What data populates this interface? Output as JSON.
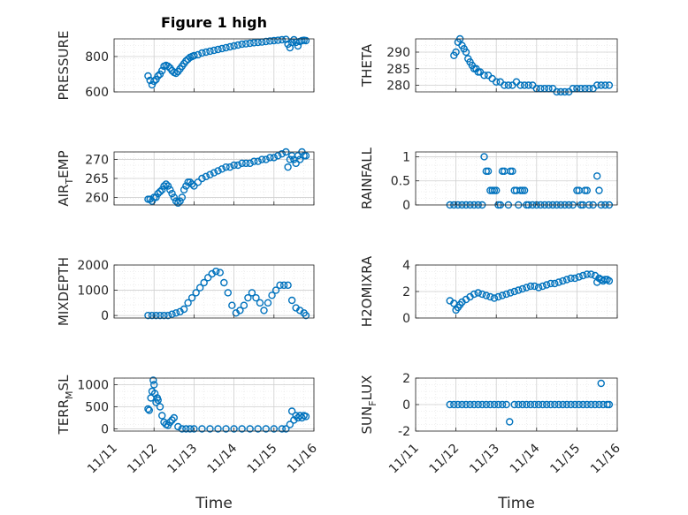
{
  "colors": {
    "marker": "#0072BD",
    "axis": "#262626",
    "grid": "#cfcfcf",
    "minor_grid": "#e0e0e0"
  },
  "chart_data": [
    {
      "type": "scatter",
      "title": "Figure 1 high",
      "ylabel": "PRESSURE",
      "x_ticks": [
        "11/11",
        "11/12",
        "11/13",
        "11/14",
        "11/15",
        "11/16"
      ],
      "ylim": [
        600,
        900
      ],
      "y_ticks": [
        "600",
        "800"
      ],
      "y_tick_values": [
        600,
        800
      ],
      "grid": "on",
      "marker": "open-circle",
      "x": [
        11.85,
        11.9,
        11.95,
        12.0,
        12.05,
        12.1,
        12.15,
        12.2,
        12.25,
        12.3,
        12.35,
        12.4,
        12.45,
        12.5,
        12.55,
        12.6,
        12.65,
        12.7,
        12.75,
        12.8,
        12.85,
        12.9,
        12.95,
        13.0,
        13.1,
        13.2,
        13.3,
        13.4,
        13.5,
        13.6,
        13.7,
        13.8,
        13.9,
        14.0,
        14.1,
        14.2,
        14.3,
        14.4,
        14.5,
        14.6,
        14.7,
        14.8,
        14.9,
        15.0,
        15.1,
        15.2,
        15.3,
        15.35,
        15.4,
        15.45,
        15.5,
        15.55,
        15.6,
        15.65,
        15.7,
        15.75,
        15.8
      ],
      "y": [
        690,
        665,
        640,
        660,
        670,
        690,
        700,
        720,
        745,
        750,
        745,
        735,
        720,
        710,
        705,
        715,
        730,
        745,
        760,
        775,
        785,
        795,
        800,
        805,
        810,
        820,
        825,
        830,
        835,
        840,
        845,
        850,
        855,
        860,
        865,
        870,
        872,
        875,
        878,
        880,
        882,
        885,
        888,
        890,
        892,
        895,
        897,
        870,
        850,
        880,
        895,
        880,
        860,
        885,
        890,
        892,
        890
      ]
    },
    {
      "type": "scatter",
      "ylabel": "THETA",
      "x_ticks": [
        "11/11",
        "11/12",
        "11/13",
        "11/14",
        "11/15",
        "11/16"
      ],
      "ylim": [
        278,
        294
      ],
      "y_ticks": [
        "280",
        "285",
        "290"
      ],
      "y_tick_values": [
        280,
        285,
        290
      ],
      "grid": "on",
      "marker": "open-circle",
      "x": [
        11.95,
        12.0,
        12.05,
        12.1,
        12.15,
        12.2,
        12.25,
        12.3,
        12.35,
        12.4,
        12.45,
        12.5,
        12.55,
        12.6,
        12.7,
        12.8,
        12.9,
        13.0,
        13.1,
        13.2,
        13.3,
        13.4,
        13.5,
        13.6,
        13.7,
        13.8,
        13.9,
        14.0,
        14.1,
        14.2,
        14.3,
        14.4,
        14.5,
        14.6,
        14.7,
        14.8,
        14.9,
        15.0,
        15.1,
        15.2,
        15.3,
        15.4,
        15.5,
        15.6,
        15.7,
        15.8
      ],
      "y": [
        289,
        290,
        293,
        294,
        292,
        291,
        290,
        288,
        287,
        286,
        285,
        285,
        284,
        284,
        283,
        283,
        282,
        281,
        281,
        280,
        280,
        280,
        281,
        280,
        280,
        280,
        280,
        279,
        279,
        279,
        279,
        279,
        278,
        278,
        278,
        278,
        279,
        279,
        279,
        279,
        279,
        279,
        280,
        280,
        280,
        280
      ]
    },
    {
      "type": "scatter",
      "ylabel": "AIR_TEMP",
      "x_ticks": [
        "11/11",
        "11/12",
        "11/13",
        "11/14",
        "11/15",
        "11/16"
      ],
      "ylim": [
        258,
        272
      ],
      "y_ticks": [
        "260",
        "265",
        "270"
      ],
      "y_tick_values": [
        260,
        265,
        270
      ],
      "grid": "on",
      "marker": "open-circle",
      "x": [
        11.85,
        11.9,
        11.95,
        12.0,
        12.05,
        12.1,
        12.15,
        12.2,
        12.25,
        12.3,
        12.35,
        12.4,
        12.45,
        12.5,
        12.55,
        12.6,
        12.65,
        12.7,
        12.75,
        12.8,
        12.85,
        12.9,
        12.95,
        13.0,
        13.1,
        13.2,
        13.3,
        13.4,
        13.5,
        13.6,
        13.7,
        13.8,
        13.9,
        14.0,
        14.1,
        14.2,
        14.3,
        14.4,
        14.5,
        14.6,
        14.7,
        14.8,
        14.9,
        15.0,
        15.1,
        15.2,
        15.3,
        15.35,
        15.4,
        15.45,
        15.5,
        15.55,
        15.6,
        15.65,
        15.7,
        15.75,
        15.8
      ],
      "y": [
        259.5,
        259.5,
        259,
        260,
        260,
        261,
        261.5,
        262,
        263,
        263.5,
        263,
        262,
        261,
        260,
        259,
        258.5,
        259,
        260,
        262,
        263,
        264,
        264,
        263.5,
        263,
        264,
        265,
        265.5,
        266,
        266.5,
        267,
        267.5,
        268,
        268,
        268.5,
        268.5,
        269,
        269,
        269,
        269.5,
        269.5,
        270,
        270,
        270.5,
        270.5,
        271,
        271.5,
        272,
        268,
        270,
        271,
        270,
        269,
        271,
        270,
        272,
        271,
        271
      ]
    },
    {
      "type": "scatter",
      "ylabel": "RAINFALL",
      "x_ticks": [
        "11/11",
        "11/12",
        "11/13",
        "11/14",
        "11/15",
        "11/16"
      ],
      "ylim": [
        0,
        1.1
      ],
      "y_ticks": [
        "0",
        "0.5",
        "1"
      ],
      "y_tick_values": [
        0,
        0.5,
        1
      ],
      "grid": "on",
      "marker": "open-circle",
      "x": [
        11.85,
        11.95,
        12.05,
        12.15,
        12.25,
        12.35,
        12.45,
        12.55,
        12.65,
        12.7,
        12.75,
        12.8,
        12.85,
        12.9,
        12.95,
        13.0,
        13.05,
        13.1,
        13.15,
        13.2,
        13.3,
        13.35,
        13.4,
        13.45,
        13.5,
        13.55,
        13.6,
        13.65,
        13.7,
        13.75,
        13.8,
        13.9,
        14.0,
        14.1,
        14.2,
        14.3,
        14.4,
        14.5,
        14.6,
        14.7,
        14.8,
        14.9,
        15.0,
        15.05,
        15.1,
        15.15,
        15.2,
        15.25,
        15.3,
        15.4,
        15.5,
        15.55,
        15.6,
        15.7,
        15.8
      ],
      "y": [
        0,
        0,
        0,
        0,
        0,
        0,
        0,
        0,
        0,
        1,
        0.7,
        0.7,
        0.3,
        0.3,
        0.3,
        0.3,
        0,
        0,
        0.7,
        0.7,
        0,
        0.7,
        0.7,
        0.3,
        0.3,
        0,
        0.3,
        0.3,
        0.3,
        0,
        0,
        0,
        0,
        0,
        0,
        0,
        0,
        0,
        0,
        0,
        0,
        0,
        0.3,
        0.3,
        0,
        0,
        0.3,
        0.3,
        0,
        0,
        0.6,
        0.3,
        0,
        0,
        0
      ]
    },
    {
      "type": "scatter",
      "ylabel": "MIXDEPTH",
      "x_ticks": [
        "11/11",
        "11/12",
        "11/13",
        "11/14",
        "11/15",
        "11/16"
      ],
      "ylim": [
        -100,
        2000
      ],
      "y_ticks": [
        "0",
        "1000",
        "2000"
      ],
      "y_tick_values": [
        0,
        1000,
        2000
      ],
      "grid": "on",
      "marker": "open-circle",
      "x": [
        11.85,
        11.95,
        12.05,
        12.15,
        12.25,
        12.35,
        12.45,
        12.55,
        12.65,
        12.75,
        12.85,
        12.95,
        13.05,
        13.15,
        13.25,
        13.35,
        13.45,
        13.55,
        13.65,
        13.75,
        13.85,
        13.95,
        14.05,
        14.15,
        14.25,
        14.35,
        14.45,
        14.55,
        14.65,
        14.75,
        14.85,
        14.95,
        15.05,
        15.15,
        15.25,
        15.35,
        15.45,
        15.55,
        15.65,
        15.75,
        15.8
      ],
      "y": [
        0,
        0,
        0,
        0,
        0,
        0,
        50,
        100,
        150,
        250,
        500,
        700,
        900,
        1100,
        1300,
        1500,
        1650,
        1750,
        1700,
        1300,
        900,
        400,
        100,
        200,
        400,
        700,
        900,
        700,
        500,
        200,
        500,
        800,
        1000,
        1200,
        1200,
        1200,
        600,
        300,
        200,
        100,
        0
      ]
    },
    {
      "type": "scatter",
      "ylabel": "H2OMIXRA",
      "x_ticks": [
        "11/11",
        "11/12",
        "11/13",
        "11/14",
        "11/15",
        "11/16"
      ],
      "ylim": [
        0,
        4
      ],
      "y_ticks": [
        "0",
        "2",
        "4"
      ],
      "y_tick_values": [
        0,
        2,
        4
      ],
      "grid": "on",
      "marker": "open-circle",
      "x": [
        11.85,
        11.95,
        12.0,
        12.05,
        12.1,
        12.15,
        12.25,
        12.35,
        12.45,
        12.55,
        12.65,
        12.75,
        12.85,
        12.95,
        13.05,
        13.15,
        13.25,
        13.35,
        13.45,
        13.55,
        13.65,
        13.75,
        13.85,
        13.95,
        14.05,
        14.15,
        14.25,
        14.35,
        14.45,
        14.55,
        14.65,
        14.75,
        14.85,
        14.95,
        15.05,
        15.15,
        15.25,
        15.35,
        15.45,
        15.5,
        15.55,
        15.6,
        15.65,
        15.7,
        15.75,
        15.8
      ],
      "y": [
        1.3,
        1.1,
        0.6,
        0.8,
        1.0,
        1.2,
        1.4,
        1.6,
        1.8,
        1.9,
        1.8,
        1.7,
        1.6,
        1.5,
        1.6,
        1.7,
        1.8,
        1.9,
        2.0,
        2.1,
        2.2,
        2.3,
        2.4,
        2.4,
        2.3,
        2.4,
        2.5,
        2.6,
        2.6,
        2.7,
        2.8,
        2.9,
        3.0,
        3.0,
        3.1,
        3.2,
        3.3,
        3.3,
        3.2,
        2.7,
        3.0,
        2.9,
        2.8,
        2.9,
        2.9,
        2.8
      ]
    },
    {
      "type": "scatter",
      "ylabel": "TERR_MSL",
      "xlabel": "Time",
      "x_ticks": [
        "11/11",
        "11/12",
        "11/13",
        "11/14",
        "11/15",
        "11/16"
      ],
      "ylim": [
        -50,
        1150
      ],
      "y_ticks": [
        "0",
        "500",
        "1000"
      ],
      "y_tick_values": [
        0,
        500,
        1000
      ],
      "grid": "on",
      "marker": "open-circle",
      "x": [
        11.85,
        11.88,
        11.92,
        11.95,
        11.98,
        12.0,
        12.02,
        12.05,
        12.08,
        12.1,
        12.15,
        12.2,
        12.25,
        12.3,
        12.35,
        12.4,
        12.45,
        12.5,
        12.6,
        12.7,
        12.8,
        12.9,
        13.0,
        13.2,
        13.4,
        13.6,
        13.8,
        14.0,
        14.2,
        14.4,
        14.6,
        14.8,
        15.0,
        15.2,
        15.3,
        15.4,
        15.45,
        15.5,
        15.55,
        15.6,
        15.65,
        15.7,
        15.75,
        15.8
      ],
      "y": [
        450,
        420,
        700,
        850,
        1100,
        1000,
        800,
        600,
        700,
        650,
        500,
        300,
        150,
        100,
        80,
        150,
        200,
        250,
        50,
        0,
        0,
        0,
        0,
        0,
        0,
        0,
        0,
        0,
        0,
        0,
        0,
        0,
        0,
        0,
        0,
        100,
        400,
        200,
        300,
        250,
        300,
        250,
        300,
        280
      ]
    },
    {
      "type": "scatter",
      "ylabel": "SUN_FLUX",
      "xlabel": "Time",
      "x_ticks": [
        "11/11",
        "11/12",
        "11/13",
        "11/14",
        "11/15",
        "11/16"
      ],
      "ylim": [
        -2,
        2
      ],
      "y_ticks": [
        "-2",
        "0",
        "2"
      ],
      "y_tick_values": [
        -2,
        0,
        2
      ],
      "grid": "on",
      "marker": "open-circle",
      "x": [
        11.85,
        11.95,
        12.05,
        12.15,
        12.25,
        12.35,
        12.45,
        12.55,
        12.65,
        12.75,
        12.85,
        12.95,
        13.05,
        13.15,
        13.25,
        13.33,
        13.45,
        13.55,
        13.65,
        13.75,
        13.85,
        13.95,
        14.05,
        14.15,
        14.25,
        14.35,
        14.45,
        14.55,
        14.65,
        14.75,
        14.85,
        14.95,
        15.05,
        15.15,
        15.25,
        15.35,
        15.45,
        15.55,
        15.6,
        15.65,
        15.75,
        15.8
      ],
      "y": [
        0,
        0,
        0,
        0,
        0,
        0,
        0,
        0,
        0,
        0,
        0,
        0,
        0,
        0,
        0,
        -1.3,
        0,
        0,
        0,
        0,
        0,
        0,
        0,
        0,
        0,
        0,
        0,
        0,
        0,
        0,
        0,
        0,
        0,
        0,
        0,
        0,
        0,
        0,
        1.6,
        0,
        0,
        0
      ]
    }
  ]
}
